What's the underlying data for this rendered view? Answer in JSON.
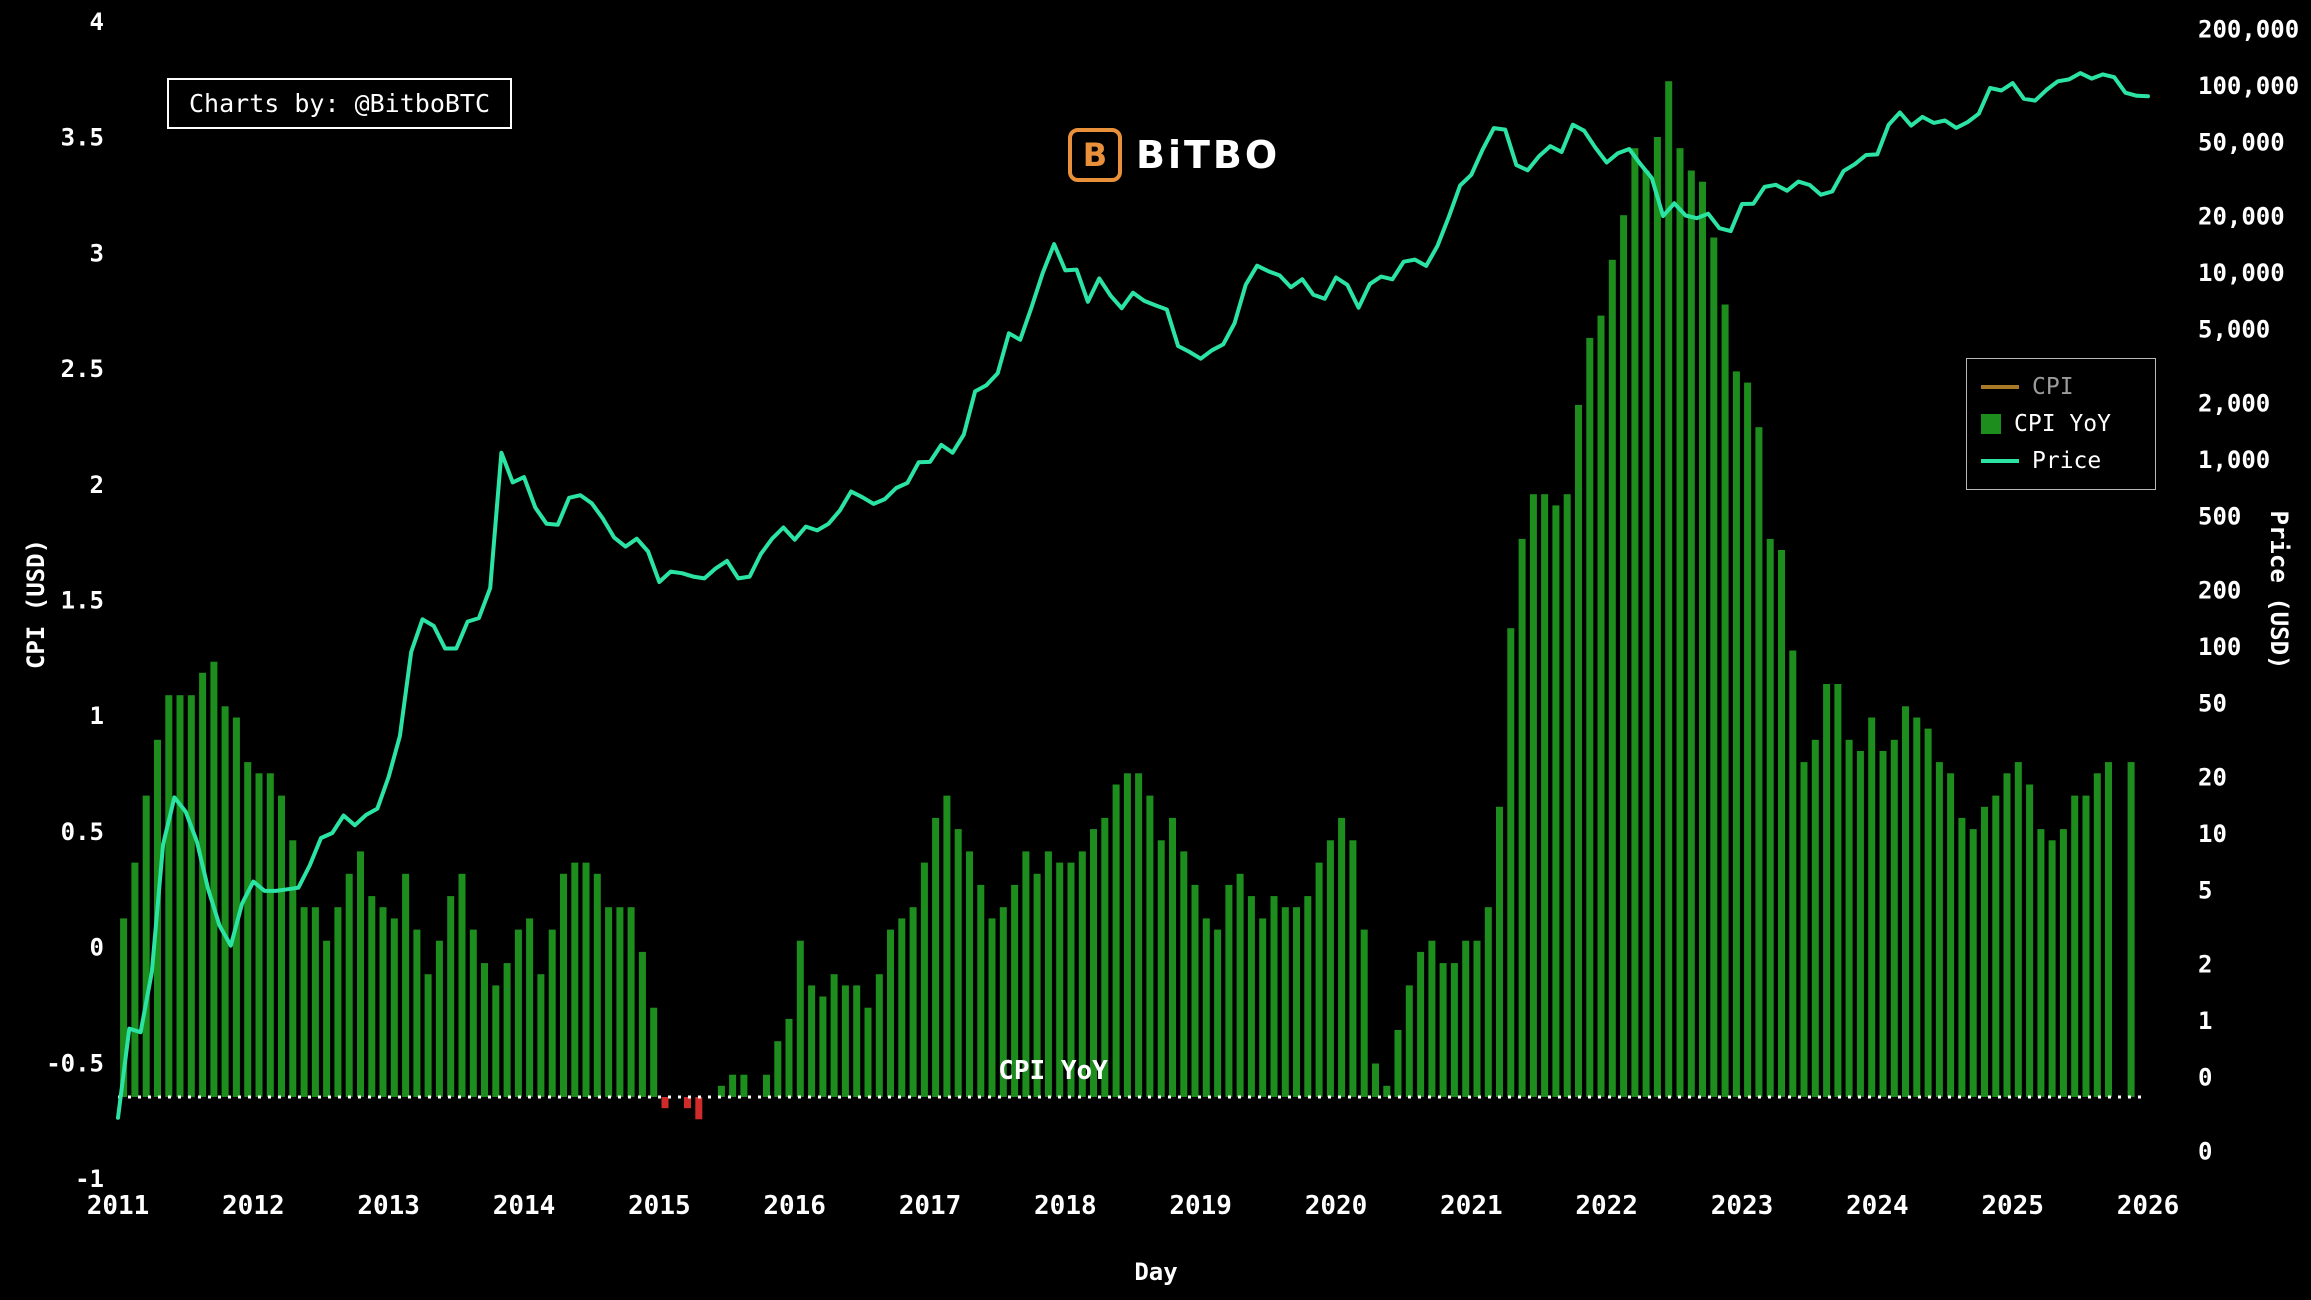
{
  "watermark": {
    "text": "Charts by: @BitboBTC"
  },
  "logo": {
    "icon": "B",
    "text": "BiTBO",
    "color": "#e8913a"
  },
  "legend": {
    "items": [
      {
        "label": "CPI",
        "swatch": "line",
        "color": "#a87a28",
        "text_color": "#9b9b9b"
      },
      {
        "label": "CPI YoY",
        "swatch": "box",
        "color": "#1d8e1d",
        "text_color": "#ffffff"
      },
      {
        "label": "Price",
        "swatch": "line",
        "color": "#2be4a4",
        "text_color": "#ffffff"
      }
    ]
  },
  "chart_data": {
    "type": "mixed",
    "title": "",
    "x_axis": {
      "label": "Day",
      "min": 2011,
      "max": 2026,
      "ticks": [
        "2011",
        "2012",
        "2013",
        "2014",
        "2015",
        "2016",
        "2017",
        "2018",
        "2019",
        "2020",
        "2021",
        "2022",
        "2023",
        "2024",
        "2025",
        "2026"
      ]
    },
    "y_left": {
      "label": "CPI (USD)",
      "min": -1,
      "max": 4,
      "tick_labels": [
        "4",
        "3.5",
        "3",
        "2.5",
        "2",
        "1.5",
        "1",
        "0.5",
        "0",
        "-0.5",
        "-1"
      ],
      "tick_values": [
        4,
        3.5,
        3,
        2.5,
        2,
        1.5,
        1,
        0.5,
        0,
        -0.5,
        -1
      ]
    },
    "y_right": {
      "label": "Price (USD)",
      "scale": "log",
      "tick_labels": [
        "200,000",
        "100,000",
        "50,000",
        "20,000",
        "10,000",
        "5,000",
        "2,000",
        "1,000",
        "500",
        "200",
        "100",
        "50",
        "20",
        "10",
        "5",
        "2",
        "1",
        "0",
        "0"
      ],
      "tick_values": [
        200000,
        100000,
        50000,
        20000,
        10000,
        5000,
        2000,
        1000,
        500,
        200,
        100,
        50,
        20,
        10,
        5,
        2,
        1,
        0.5,
        0.2
      ]
    },
    "baseline": {
      "label": "CPI YoY",
      "value": -0.65,
      "color": "#ffffff"
    },
    "bar_series": {
      "name": "CPI YoY",
      "start": "2011-01",
      "freq": "monthly",
      "unit": "percent_yoy",
      "pos_color": "#1d8e1d",
      "neg_color": "#cf2b2b",
      "scale_units_per_pct": 0.4824,
      "values": [
        1.6,
        2.1,
        2.7,
        3.2,
        3.6,
        3.6,
        3.6,
        3.8,
        3.9,
        3.5,
        3.4,
        3.0,
        2.9,
        2.9,
        2.7,
        2.3,
        1.7,
        1.7,
        1.4,
        1.7,
        2.0,
        2.2,
        1.8,
        1.7,
        1.6,
        2.0,
        1.5,
        1.1,
        1.4,
        1.8,
        2.0,
        1.5,
        1.2,
        1.0,
        1.2,
        1.5,
        1.6,
        1.1,
        1.5,
        2.0,
        2.1,
        2.1,
        2.0,
        1.7,
        1.7,
        1.7,
        1.3,
        0.8,
        -0.1,
        0.0,
        -0.1,
        -0.2,
        0.0,
        0.1,
        0.2,
        0.2,
        0.0,
        0.2,
        0.5,
        0.7,
        1.4,
        1.0,
        0.9,
        1.1,
        1.0,
        1.0,
        0.8,
        1.1,
        1.5,
        1.6,
        1.7,
        2.1,
        2.5,
        2.7,
        2.4,
        2.2,
        1.9,
        1.6,
        1.7,
        1.9,
        2.2,
        2.0,
        2.2,
        2.1,
        2.1,
        2.2,
        2.4,
        2.5,
        2.8,
        2.9,
        2.9,
        2.7,
        2.3,
        2.5,
        2.2,
        1.9,
        1.6,
        1.5,
        1.9,
        2.0,
        1.8,
        1.6,
        1.8,
        1.7,
        1.7,
        1.8,
        2.1,
        2.3,
        2.5,
        2.3,
        1.5,
        0.3,
        0.1,
        0.6,
        1.0,
        1.3,
        1.4,
        1.2,
        1.2,
        1.4,
        1.4,
        1.7,
        2.6,
        4.2,
        5.0,
        5.4,
        5.4,
        5.3,
        5.4,
        6.2,
        6.8,
        7.0,
        7.5,
        7.9,
        8.5,
        8.3,
        8.6,
        9.1,
        8.5,
        8.3,
        8.2,
        7.7,
        7.1,
        6.5,
        6.4,
        6.0,
        5.0,
        4.9,
        4.0,
        3.0,
        3.2,
        3.7,
        3.7,
        3.2,
        3.1,
        3.4,
        3.1,
        3.2,
        3.5,
        3.4,
        3.3,
        3.0,
        2.9,
        2.5,
        2.4,
        2.6,
        2.7,
        2.9,
        3.0,
        2.8,
        2.4,
        2.3,
        2.4,
        2.7,
        2.7,
        2.9,
        3.0,
        null,
        3.0
      ]
    },
    "price_series": {
      "name": "Price",
      "start": "2011-01",
      "freq": "monthly",
      "color": "#2be4a4",
      "values": [
        0.3,
        0.9,
        0.86,
        1.8,
        8.7,
        15.5,
        13.0,
        9.0,
        5.0,
        3.2,
        2.5,
        4.2,
        5.5,
        4.9,
        4.9,
        5.0,
        5.1,
        6.7,
        9.4,
        10.0,
        12.4,
        11.0,
        12.5,
        13.5,
        20,
        33,
        93,
        139,
        128,
        97,
        97,
        135,
        141,
        204,
        1080,
        750,
        800,
        550,
        450,
        445,
        620,
        640,
        580,
        480,
        380,
        340,
        375,
        320,
        220,
        250,
        245,
        235,
        230,
        260,
        285,
        230,
        235,
        310,
        375,
        430,
        370,
        435,
        415,
        450,
        530,
        670,
        625,
        575,
        610,
        700,
        745,
        960,
        965,
        1190,
        1080,
        1350,
        2300,
        2480,
        2875,
        4700,
        4340,
        6470,
        9900,
        14100,
        10200,
        10300,
        6930,
        9240,
        7500,
        6400,
        7750,
        7010,
        6630,
        6300,
        4020,
        3740,
        3440,
        3815,
        4100,
        5320,
        8560,
        10800,
        10100,
        9590,
        8290,
        9150,
        7550,
        7190,
        9350,
        8540,
        6440,
        8620,
        9450,
        9140,
        11350,
        11650,
        10780,
        13800,
        19700,
        29000,
        33100,
        45100,
        58800,
        57750,
        37300,
        35000,
        41600,
        47100,
        43800,
        61300,
        57000,
        46200,
        38500,
        43200,
        45500,
        37700,
        31800,
        19900,
        23300,
        20050,
        19400,
        20500,
        17150,
        16550,
        23100,
        23150,
        28500,
        29250,
        27200,
        30450,
        29200,
        25900,
        26950,
        34650,
        37700,
        42250,
        42550,
        61150,
        71300,
        60650,
        67500,
        62700,
        64600,
        58950,
        63300,
        70200,
        96400,
        93400,
        102400,
        84350,
        82550,
        94200,
        104600,
        107100,
        115750,
        108250,
        114000,
        110100,
        91000,
        87600,
        87000
      ]
    },
    "cpi_line_series": {
      "name": "CPI",
      "color": "#a87a28",
      "visible": false,
      "values": []
    }
  }
}
